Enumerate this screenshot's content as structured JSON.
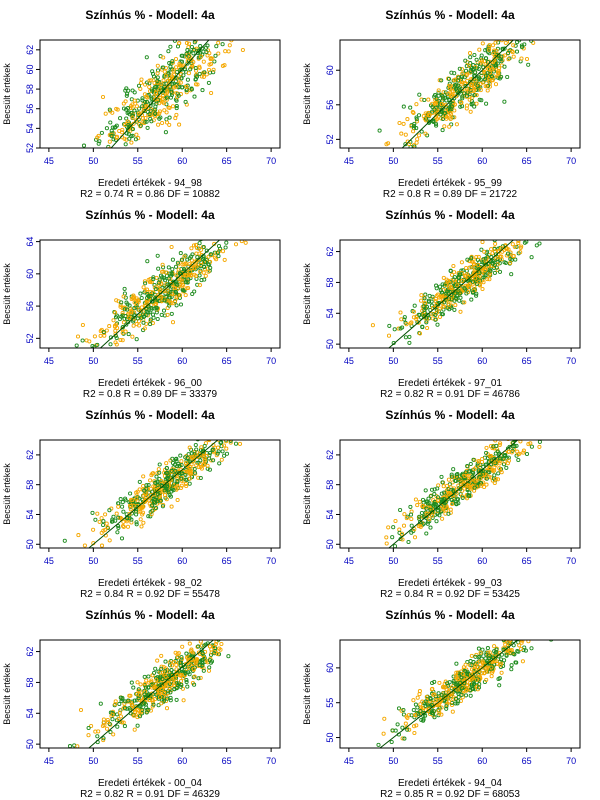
{
  "colors": {
    "series_a": "#1f8c1f",
    "series_b": "#f5a800",
    "fit_line": "#004d00",
    "tick_text": "#0000c0"
  },
  "chart_data": [
    {
      "type": "scatter",
      "title": "Színhús % - Modell: 4a",
      "xlabel": "Eredeti értékek - 94_98",
      "ylabel": "Becsült értékek",
      "stats": "R2 = 0.74  R = 0.86  DF = 10882",
      "xlim": [
        44,
        71
      ],
      "ylim": [
        52,
        63
      ],
      "xticks": [
        45,
        50,
        55,
        60,
        65,
        70
      ],
      "yticks": [
        52,
        54,
        56,
        58,
        60,
        62
      ],
      "r": 0.86,
      "slope": 0.74,
      "grid": false,
      "legend": "none"
    },
    {
      "type": "scatter",
      "title": "Színhús % - Modell: 4a",
      "xlabel": "Eredeti értékek - 95_99",
      "ylabel": "Becsült értékek",
      "stats": "R2 = 0.8  R = 0.89  DF = 21722",
      "xlim": [
        44,
        71
      ],
      "ylim": [
        51,
        63.5
      ],
      "xticks": [
        45,
        50,
        55,
        60,
        65,
        70
      ],
      "yticks": [
        52,
        56,
        60
      ],
      "r": 0.89,
      "slope": 0.8,
      "grid": false,
      "legend": "none"
    },
    {
      "type": "scatter",
      "title": "Színhús % - Modell: 4a",
      "xlabel": "Eredeti értékek - 96_00",
      "ylabel": "Becsült értékek",
      "stats": "R2 = 0.8  R = 0.89  DF = 33379",
      "xlim": [
        44,
        71
      ],
      "ylim": [
        50.8,
        64.2
      ],
      "xticks": [
        45,
        50,
        55,
        60,
        65,
        70
      ],
      "yticks": [
        52,
        56,
        60,
        64
      ],
      "r": 0.89,
      "slope": 0.8,
      "grid": false,
      "legend": "none"
    },
    {
      "type": "scatter",
      "title": "Színhús % - Modell: 4a",
      "xlabel": "Eredeti értékek - 97_01",
      "ylabel": "Becsült értékek",
      "stats": "R2 = 0.82  R = 0.91  DF = 46786",
      "xlim": [
        44,
        71
      ],
      "ylim": [
        49.5,
        63.5
      ],
      "xticks": [
        45,
        50,
        55,
        60,
        65,
        70
      ],
      "yticks": [
        50,
        54,
        58,
        62
      ],
      "r": 0.91,
      "slope": 0.82,
      "grid": false,
      "legend": "none"
    },
    {
      "type": "scatter",
      "title": "Színhús % - Modell: 4a",
      "xlabel": "Eredeti értékek - 98_02",
      "ylabel": "Becsült értékek",
      "stats": "R2 = 0.84  R = 0.92  DF = 55478",
      "xlim": [
        44,
        71
      ],
      "ylim": [
        49.5,
        64
      ],
      "xticks": [
        45,
        50,
        55,
        60,
        65,
        70
      ],
      "yticks": [
        50,
        54,
        58,
        62
      ],
      "r": 0.92,
      "slope": 0.84,
      "grid": false,
      "legend": "none"
    },
    {
      "type": "scatter",
      "title": "Színhús % - Modell: 4a",
      "xlabel": "Eredeti értékek - 99_03",
      "ylabel": "Becsült értékek",
      "stats": "R2 = 0.84  R = 0.92  DF = 53425",
      "xlim": [
        44,
        71
      ],
      "ylim": [
        49.5,
        64
      ],
      "xticks": [
        45,
        50,
        55,
        60,
        65,
        70
      ],
      "yticks": [
        50,
        54,
        58,
        62
      ],
      "r": 0.92,
      "slope": 0.84,
      "grid": false,
      "legend": "none"
    },
    {
      "type": "scatter",
      "title": "Színhús % - Modell: 4a",
      "xlabel": "Eredeti értékek - 00_04",
      "ylabel": "Becsült értékek",
      "stats": "R2 = 0.82  R = 0.91  DF = 46329",
      "xlim": [
        44,
        71
      ],
      "ylim": [
        49.5,
        63.5
      ],
      "xticks": [
        45,
        50,
        55,
        60,
        65,
        70
      ],
      "yticks": [
        50,
        54,
        58,
        62
      ],
      "r": 0.91,
      "slope": 0.82,
      "grid": false,
      "legend": "none"
    },
    {
      "type": "scatter",
      "title": "Színhús % - Modell: 4a",
      "xlabel": "Eredeti értékek - 94_04",
      "ylabel": "Becsült értékek",
      "stats": "R2 = 0.85  R = 0.92  DF = 68053",
      "xlim": [
        44,
        71
      ],
      "ylim": [
        48.5,
        64
      ],
      "xticks": [
        45,
        50,
        55,
        60,
        65,
        70
      ],
      "yticks": [
        50,
        55,
        60
      ],
      "r": 0.92,
      "slope": 0.85,
      "grid": false,
      "legend": "none"
    }
  ]
}
